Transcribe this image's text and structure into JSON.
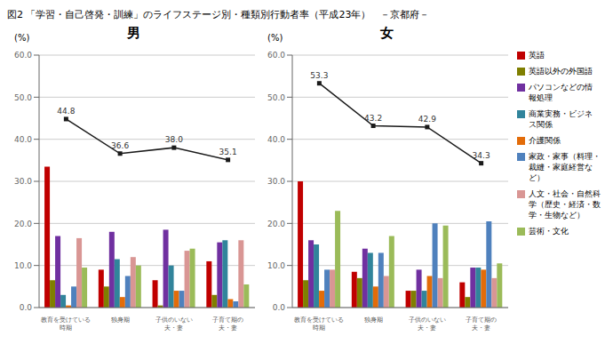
{
  "title": "図2 「学習・自己啓発・訓練」のライフステージ別・種類別行動者率（平成23年）　－京都府－",
  "legend": "right",
  "chart_data": [
    {
      "type": "bar",
      "title": "男",
      "ylabel": "(%)",
      "categories": [
        "教育を受けている\n時期",
        "独身期",
        "子供のいない\n夫・妻",
        "子育て期の\n夫・妻"
      ],
      "ylim": [
        0.0,
        60.0
      ],
      "yticks": [
        {
          "value": 0,
          "label": "0.0"
        },
        {
          "value": 10,
          "label": "10.0"
        },
        {
          "value": 20,
          "label": "20.0"
        },
        {
          "value": 30,
          "label": "30.0"
        },
        {
          "value": 40,
          "label": "40.0"
        },
        {
          "value": 50,
          "label": "50.0"
        },
        {
          "value": 60,
          "label": "60.0"
        }
      ],
      "grid": true,
      "series": [
        {
          "name": "英語",
          "color": "#c00000",
          "values": [
            33.5,
            9.0,
            6.5,
            11.0
          ]
        },
        {
          "name": "英語以外の外国語",
          "color": "#7f7f00",
          "values": [
            6.5,
            5.0,
            0.5,
            3.0
          ]
        },
        {
          "name": "パソコンなどの情\n報処理",
          "color": "#7030a0",
          "values": [
            17.0,
            18.0,
            18.5,
            15.5
          ]
        },
        {
          "name": "商業実務・ビジネ\nス関係",
          "color": "#31849b",
          "values": [
            3.0,
            11.5,
            10.0,
            16.0
          ]
        },
        {
          "name": "介護関係",
          "color": "#e36c09",
          "values": [
            0.5,
            2.5,
            4.0,
            2.0
          ]
        },
        {
          "name": "家政・家事（料理・\n裁縫・家庭経営な\nど）",
          "color": "#4f81bd",
          "values": [
            5.0,
            7.5,
            4.0,
            1.5
          ]
        },
        {
          "name": "人文・社会・自然科\n学（歴史・経済・数\n学・生物など）",
          "color": "#d99694",
          "values": [
            16.5,
            12.0,
            13.5,
            16.0
          ]
        },
        {
          "name": "芸術・文化",
          "color": "#9bbb59",
          "values": [
            9.5,
            10.0,
            14.0,
            5.5
          ]
        },
        {
          "type": "line",
          "color": "#1a1a1a",
          "marker": "square",
          "data_labels": true,
          "values": [
            44.8,
            36.6,
            38.0,
            35.1
          ],
          "value_labels": [
            "44.8",
            "36.6",
            "38.0",
            "35.1"
          ]
        }
      ]
    },
    {
      "type": "bar",
      "title": "女",
      "ylabel": "(%)",
      "categories": [
        "教育を受けている\n時期",
        "独身期",
        "子供のいない\n夫・妻",
        "子育て期の\n夫・妻"
      ],
      "ylim": [
        0.0,
        60.0
      ],
      "yticks": [
        {
          "value": 0,
          "label": "0.0"
        },
        {
          "value": 10,
          "label": "10.0"
        },
        {
          "value": 20,
          "label": "20.0"
        },
        {
          "value": 30,
          "label": "30.0"
        },
        {
          "value": 40,
          "label": "40.0"
        },
        {
          "value": 50,
          "label": "50.0"
        },
        {
          "value": 60,
          "label": "60.0"
        }
      ],
      "grid": true,
      "series": [
        {
          "name": "英語",
          "color": "#c00000",
          "values": [
            30.0,
            8.5,
            4.0,
            6.0
          ]
        },
        {
          "name": "英語以外の外国語",
          "color": "#7f7f00",
          "values": [
            6.5,
            7.0,
            4.0,
            2.5
          ]
        },
        {
          "name": "パソコンなどの情\n報処理",
          "color": "#7030a0",
          "values": [
            16.0,
            14.0,
            9.0,
            9.5
          ]
        },
        {
          "name": "商業実務・ビジネ\nス関係",
          "color": "#31849b",
          "values": [
            15.0,
            13.0,
            4.0,
            9.5
          ]
        },
        {
          "name": "介護関係",
          "color": "#e36c09",
          "values": [
            4.0,
            5.0,
            7.5,
            9.0
          ]
        },
        {
          "name": "家政・家事（料理・\n裁縫・家庭経営な\nど）",
          "color": "#4f81bd",
          "values": [
            9.0,
            13.0,
            20.0,
            20.5
          ]
        },
        {
          "name": "人文・社会・自然科\n学（歴史・経済・数\n学・生物など）",
          "color": "#d99694",
          "values": [
            9.0,
            7.5,
            7.0,
            7.0
          ]
        },
        {
          "name": "芸術・文化",
          "color": "#9bbb59",
          "values": [
            23.0,
            17.0,
            19.5,
            10.5
          ]
        },
        {
          "type": "line",
          "color": "#1a1a1a",
          "marker": "square",
          "data_labels": true,
          "values": [
            53.3,
            43.2,
            42.9,
            34.3
          ]
        }
      ]
    }
  ]
}
